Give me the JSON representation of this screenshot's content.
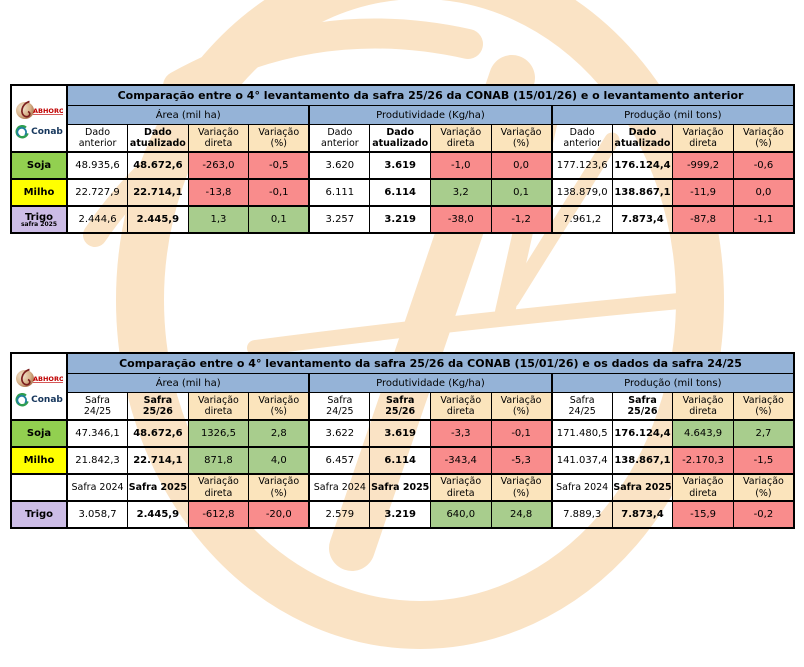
{
  "colors": {
    "header_blue": "#95B3D7",
    "variation_red": "#F98C8C",
    "variation_green": "#A8CD8D",
    "header_cream": "#FBE4BC",
    "soja_green": "#92D050",
    "milho_yellow": "#FFFF00",
    "trigo_purple": "#CCBCE6",
    "watermark_orange": "#FAE3C5"
  },
  "logos": {
    "labhoro": {
      "text": "ABHORO"
    },
    "conab": {
      "text": "Conab"
    }
  },
  "chart_data": [
    {
      "type": "table",
      "title": "Comparação entre o 4° levantamento da safra 25/26 da CONAB (15/01/26) e o levantamento anterior",
      "groups": [
        "Área (mil ha)",
        "Produtividade (Kg/ha)",
        "Produção (mil tons)"
      ],
      "column_headers": [
        {
          "lines": [
            "Dado",
            "anterior"
          ],
          "s": "hp"
        },
        {
          "lines": [
            "Dado",
            "atualizado"
          ],
          "s": "hb"
        },
        {
          "lines": [
            "Variação",
            "direta"
          ],
          "s": "hc"
        },
        {
          "lines": [
            "Variação",
            "(%)"
          ],
          "s": "hc"
        },
        {
          "lines": [
            "Dado",
            "anterior"
          ],
          "s": "hp"
        },
        {
          "lines": [
            "Dado",
            "atualizado"
          ],
          "s": "hb"
        },
        {
          "lines": [
            "Variação",
            "direta"
          ],
          "s": "hc"
        },
        {
          "lines": [
            "Variação",
            "(%)"
          ],
          "s": "hc"
        },
        {
          "lines": [
            "Dado",
            "anterior"
          ],
          "s": "hp"
        },
        {
          "lines": [
            "Dado",
            "atualizado"
          ],
          "s": "hb"
        },
        {
          "lines": [
            "Variação",
            "direta"
          ],
          "s": "hc"
        },
        {
          "lines": [
            "Variação",
            "(%)"
          ],
          "s": "hc"
        }
      ],
      "rows": [
        {
          "type": "data",
          "label": "Soja",
          "sublabel": "",
          "label_bg": "#92D050",
          "cells": [
            {
              "v": "48.935,6",
              "s": "p"
            },
            {
              "v": "48.672,6",
              "s": "b"
            },
            {
              "v": "-263,0",
              "s": "r"
            },
            {
              "v": "-0,5",
              "s": "r"
            },
            {
              "v": "3.620",
              "s": "p"
            },
            {
              "v": "3.619",
              "s": "b"
            },
            {
              "v": "-1,0",
              "s": "r"
            },
            {
              "v": "0,0",
              "s": "r"
            },
            {
              "v": "177.123,6",
              "s": "p"
            },
            {
              "v": "176.124,4",
              "s": "b"
            },
            {
              "v": "-999,2",
              "s": "r"
            },
            {
              "v": "-0,6",
              "s": "r"
            }
          ]
        },
        {
          "type": "data",
          "label": "Milho",
          "sublabel": "",
          "label_bg": "#FFFF00",
          "cells": [
            {
              "v": "22.727,9",
              "s": "p"
            },
            {
              "v": "22.714,1",
              "s": "b"
            },
            {
              "v": "-13,8",
              "s": "r"
            },
            {
              "v": "-0,1",
              "s": "r"
            },
            {
              "v": "6.111",
              "s": "p"
            },
            {
              "v": "6.114",
              "s": "b"
            },
            {
              "v": "3,2",
              "s": "g"
            },
            {
              "v": "0,1",
              "s": "g"
            },
            {
              "v": "138.879,0",
              "s": "p"
            },
            {
              "v": "138.867,1",
              "s": "b"
            },
            {
              "v": "-11,9",
              "s": "r"
            },
            {
              "v": "0,0",
              "s": "r"
            }
          ]
        },
        {
          "type": "data",
          "label": "Trigo",
          "sublabel": "safra 2025",
          "label_bg": "#CCBCE6",
          "cells": [
            {
              "v": "2.444,6",
              "s": "p"
            },
            {
              "v": "2.445,9",
              "s": "b"
            },
            {
              "v": "1,3",
              "s": "g"
            },
            {
              "v": "0,1",
              "s": "g"
            },
            {
              "v": "3.257",
              "s": "p"
            },
            {
              "v": "3.219",
              "s": "b"
            },
            {
              "v": "-38,0",
              "s": "r"
            },
            {
              "v": "-1,2",
              "s": "r"
            },
            {
              "v": "7.961,2",
              "s": "p"
            },
            {
              "v": "7.873,4",
              "s": "b"
            },
            {
              "v": "-87,8",
              "s": "r"
            },
            {
              "v": "-1,1",
              "s": "r"
            }
          ]
        }
      ]
    },
    {
      "type": "table",
      "title": "Comparação entre o 4° levantamento da safra 25/26 da CONAB (15/01/26) e os dados da safra 24/25",
      "groups": [
        "Área (mil ha)",
        "Produtividade (Kg/ha)",
        "Produção (mil tons)"
      ],
      "column_headers": [
        {
          "lines": [
            "Safra",
            "24/25"
          ],
          "s": "hp"
        },
        {
          "lines": [
            "Safra",
            "25/26"
          ],
          "s": "hb"
        },
        {
          "lines": [
            "Variação",
            "direta"
          ],
          "s": "hc"
        },
        {
          "lines": [
            "Variação",
            "(%)"
          ],
          "s": "hc"
        },
        {
          "lines": [
            "Safra",
            "24/25"
          ],
          "s": "hp"
        },
        {
          "lines": [
            "Safra",
            "25/26"
          ],
          "s": "hb"
        },
        {
          "lines": [
            "Variação",
            "direta"
          ],
          "s": "hc"
        },
        {
          "lines": [
            "Variação",
            "(%)"
          ],
          "s": "hc"
        },
        {
          "lines": [
            "Safra",
            "24/25"
          ],
          "s": "hp"
        },
        {
          "lines": [
            "Safra",
            "25/26"
          ],
          "s": "hb"
        },
        {
          "lines": [
            "Variação",
            "direta"
          ],
          "s": "hc"
        },
        {
          "lines": [
            "Variação",
            "(%)"
          ],
          "s": "hc"
        }
      ],
      "rows": [
        {
          "type": "data",
          "label": "Soja",
          "sublabel": "",
          "label_bg": "#92D050",
          "cells": [
            {
              "v": "47.346,1",
              "s": "p"
            },
            {
              "v": "48.672,6",
              "s": "b"
            },
            {
              "v": "1326,5",
              "s": "g"
            },
            {
              "v": "2,8",
              "s": "g"
            },
            {
              "v": "3.622",
              "s": "p"
            },
            {
              "v": "3.619",
              "s": "b"
            },
            {
              "v": "-3,3",
              "s": "r"
            },
            {
              "v": "-0,1",
              "s": "r"
            },
            {
              "v": "171.480,5",
              "s": "p"
            },
            {
              "v": "176.124,4",
              "s": "b"
            },
            {
              "v": "4.643,9",
              "s": "g"
            },
            {
              "v": "2,7",
              "s": "g"
            }
          ]
        },
        {
          "type": "data",
          "label": "Milho",
          "sublabel": "",
          "label_bg": "#FFFF00",
          "cells": [
            {
              "v": "21.842,3",
              "s": "p"
            },
            {
              "v": "22.714,1",
              "s": "b"
            },
            {
              "v": "871,8",
              "s": "g"
            },
            {
              "v": "4,0",
              "s": "g"
            },
            {
              "v": "6.457",
              "s": "p"
            },
            {
              "v": "6.114",
              "s": "b"
            },
            {
              "v": "-343,4",
              "s": "r"
            },
            {
              "v": "-5,3",
              "s": "r"
            },
            {
              "v": "141.037,4",
              "s": "p"
            },
            {
              "v": "138.867,1",
              "s": "b"
            },
            {
              "v": "-2.170,3",
              "s": "r"
            },
            {
              "v": "-1,5",
              "s": "r"
            }
          ]
        },
        {
          "type": "subheader",
          "label": "",
          "sublabel": "",
          "label_bg": "",
          "cells": [
            {
              "lines": [
                "Safra 2024"
              ],
              "s": "hp"
            },
            {
              "lines": [
                "Safra 2025"
              ],
              "s": "hb"
            },
            {
              "lines": [
                "Variação",
                "direta"
              ],
              "s": "hc"
            },
            {
              "lines": [
                "Variação",
                "(%)"
              ],
              "s": "hc"
            },
            {
              "lines": [
                "Safra 2024"
              ],
              "s": "hp"
            },
            {
              "lines": [
                "Safra 2025"
              ],
              "s": "hb"
            },
            {
              "lines": [
                "Variação",
                "direta"
              ],
              "s": "hc"
            },
            {
              "lines": [
                "Variação",
                "(%)"
              ],
              "s": "hc"
            },
            {
              "lines": [
                "Safra 2024"
              ],
              "s": "hp"
            },
            {
              "lines": [
                "Safra 2025"
              ],
              "s": "hb"
            },
            {
              "lines": [
                "Variação",
                "direta"
              ],
              "s": "hc"
            },
            {
              "lines": [
                "Variação",
                "(%)"
              ],
              "s": "hc"
            }
          ]
        },
        {
          "type": "data",
          "label": "Trigo",
          "sublabel": "",
          "label_bg": "#CCBCE6",
          "cells": [
            {
              "v": "3.058,7",
              "s": "p"
            },
            {
              "v": "2.445,9",
              "s": "b"
            },
            {
              "v": "-612,8",
              "s": "r"
            },
            {
              "v": "-20,0",
              "s": "r"
            },
            {
              "v": "2.579",
              "s": "p"
            },
            {
              "v": "3.219",
              "s": "b"
            },
            {
              "v": "640,0",
              "s": "g"
            },
            {
              "v": "24,8",
              "s": "g"
            },
            {
              "v": "7.889,3",
              "s": "p"
            },
            {
              "v": "7.873,4",
              "s": "b"
            },
            {
              "v": "-15,9",
              "s": "r"
            },
            {
              "v": "-0,2",
              "s": "r"
            }
          ]
        }
      ]
    }
  ],
  "layout_tops": [
    84,
    352
  ]
}
